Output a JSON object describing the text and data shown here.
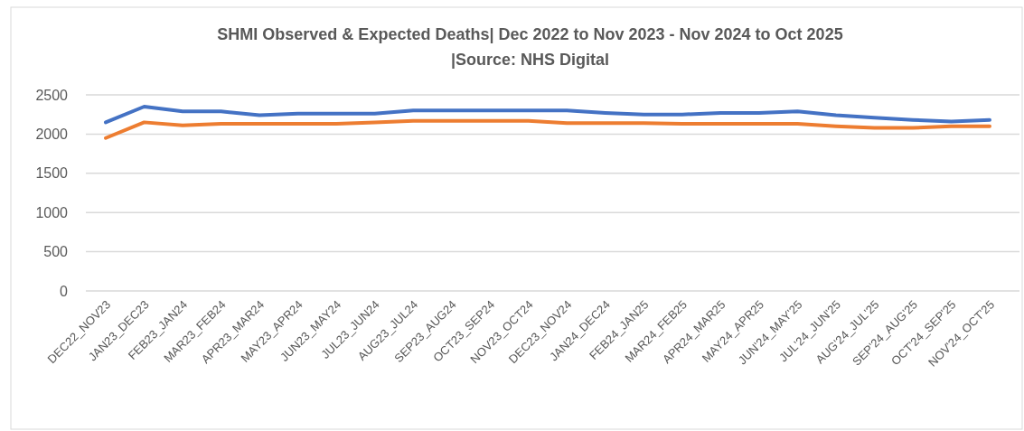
{
  "chart_data": {
    "type": "line",
    "title": "SHMI Observed & Expected Deaths| Dec 2022 to Nov 2023 - Nov 2024 to Oct 2025",
    "subtitle": "|Source: NHS Digital",
    "categories": [
      "DEC22_NOV23",
      "JAN23_DEC23",
      "FEB23_JAN24",
      "MAR23_FEB24",
      "APR23_MAR24",
      "MAY23_APR24",
      "JUN23_MAY24",
      "JUL23_JUN24",
      "AUG23_JUL24",
      "SEP23_AUG24",
      "OCT23_SEP24",
      "NOV23_OCT24",
      "DEC23_NOV24",
      "JAN24_DEC24",
      "FEB24_JAN25",
      "MAR24_FEB25",
      "APR24_MAR25",
      "MAY24_APR25",
      "JUN'24_MAY'25",
      "JUL'24_JUN'25",
      "AUG'24_JUL'25",
      "SEP'24_AUG'25",
      "OCT'24_SEP'25",
      "NOV'24_OCT'25"
    ],
    "series": [
      {
        "color": "#4472c4",
        "values": [
          2150,
          2350,
          2290,
          2290,
          2240,
          2260,
          2260,
          2260,
          2300,
          2300,
          2300,
          2300,
          2300,
          2270,
          2250,
          2250,
          2270,
          2270,
          2290,
          2240,
          2210,
          2180,
          2160,
          2180
        ]
      },
      {
        "color": "#ed7d31",
        "values": [
          1950,
          2150,
          2110,
          2130,
          2130,
          2130,
          2130,
          2150,
          2170,
          2170,
          2170,
          2170,
          2140,
          2140,
          2140,
          2130,
          2130,
          2130,
          2130,
          2100,
          2080,
          2080,
          2100,
          2100
        ]
      }
    ],
    "ylim": [
      0,
      2500
    ],
    "yticks": [
      0,
      500,
      1000,
      1500,
      2000,
      2500
    ],
    "grid": "y",
    "marker": "none",
    "line_style": "solid"
  }
}
